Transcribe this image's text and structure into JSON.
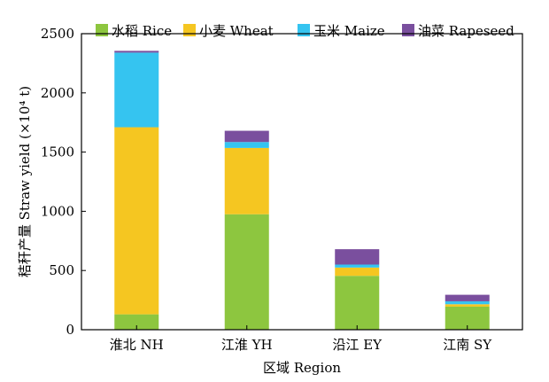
{
  "chart_data": {
    "type": "bar",
    "stacked": true,
    "categories": [
      "淮北 NH",
      "江淮 YH",
      "沿江 EY",
      "江南 SY"
    ],
    "series": [
      {
        "name": "水稻 Rice",
        "color": "#8dc63f",
        "values": [
          130,
          975,
          455,
          195
        ]
      },
      {
        "name": "小麦 Wheat",
        "color": "#f5c621",
        "values": [
          1580,
          560,
          70,
          20
        ]
      },
      {
        "name": "玉米 Maize",
        "color": "#35c4f0",
        "values": [
          630,
          50,
          25,
          25
        ]
      },
      {
        "name": "油菜 Rapeseed",
        "color": "#7a4f9e",
        "values": [
          15,
          95,
          130,
          55
        ]
      }
    ],
    "xlabel": "区域 Region",
    "ylabel": "秸秆产量 Straw yield (×10⁴ t)",
    "ylim": [
      0,
      2500
    ],
    "yticks": [
      0,
      500,
      1000,
      1500,
      2000,
      2500
    ],
    "grid": false,
    "legend_position": "top"
  }
}
